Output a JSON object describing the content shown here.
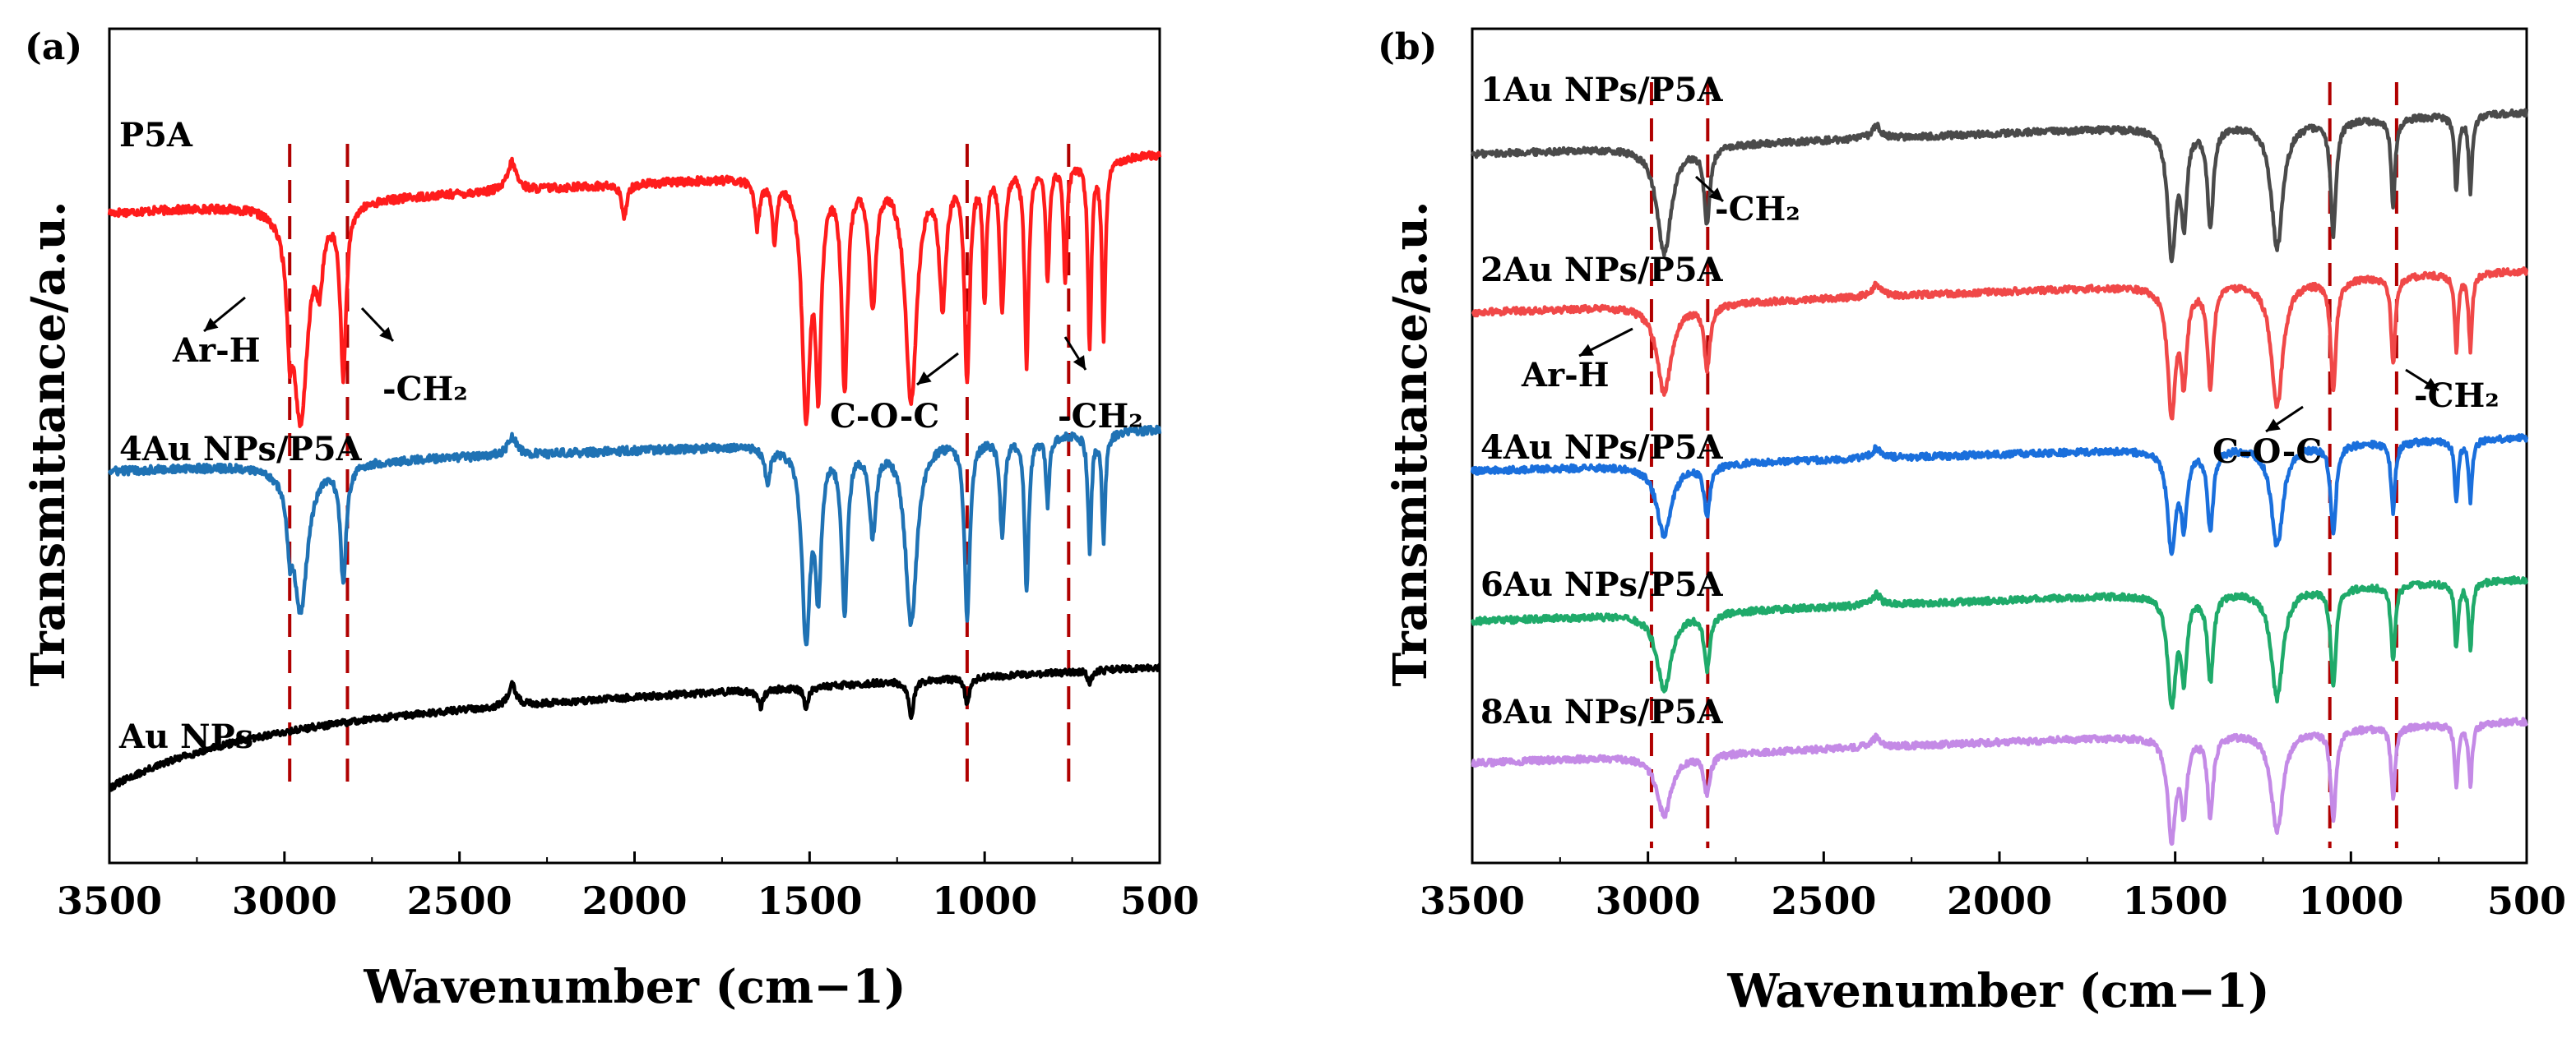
{
  "chart_data": [
    {
      "type": "line",
      "panel_label": "(a)",
      "xlabel": "Wavenumber (cm−1)",
      "ylabel": "Transmittance/a.u.",
      "xlim": [
        3500,
        500
      ],
      "x_ticks": [
        3500,
        3000,
        2500,
        2000,
        1500,
        1000,
        500
      ],
      "grid": false,
      "y_ticks_visible": false,
      "series": [
        {
          "name": "P5A",
          "color": "#ff1c1c",
          "baseline": 0.78,
          "amplitude": 0.28,
          "trend": 0.07,
          "noise": 0.005,
          "peaks": [
            [
              2954,
              0.92,
              25
            ],
            [
              2832,
              0.72,
              10
            ],
            [
              2985,
              0.35,
              9
            ],
            [
              2900,
              0.25,
              12
            ],
            [
              1510,
              1.0,
              14
            ],
            [
              1475,
              0.82,
              10
            ],
            [
              1400,
              0.9,
              10
            ],
            [
              1320,
              0.55,
              12
            ],
            [
              1210,
              0.98,
              20
            ],
            [
              1120,
              0.55,
              12
            ],
            [
              1050,
              0.9,
              9
            ],
            [
              1000,
              0.55,
              6
            ],
            [
              950,
              0.6,
              8
            ],
            [
              880,
              0.85,
              7
            ],
            [
              820,
              0.5,
              6
            ],
            [
              770,
              0.5,
              6
            ],
            [
              700,
              0.8,
              6
            ],
            [
              660,
              0.75,
              6
            ],
            [
              1600,
              0.25,
              8
            ],
            [
              1650,
              0.2,
              8
            ],
            [
              2030,
              0.15,
              8
            ],
            [
              2350,
              -0.12,
              15
            ]
          ]
        },
        {
          "name": "4Au NPs/P5A",
          "color": "#1f72b4",
          "baseline": 0.47,
          "amplitude": 0.23,
          "trend": 0.05,
          "noise": 0.005,
          "peaks": [
            [
              2954,
              0.75,
              25
            ],
            [
              2832,
              0.6,
              10
            ],
            [
              2985,
              0.25,
              9
            ],
            [
              1510,
              1.0,
              14
            ],
            [
              1475,
              0.7,
              10
            ],
            [
              1400,
              0.85,
              10
            ],
            [
              1320,
              0.45,
              12
            ],
            [
              1210,
              0.95,
              20
            ],
            [
              1050,
              0.95,
              9
            ],
            [
              950,
              0.5,
              8
            ],
            [
              880,
              0.8,
              7
            ],
            [
              820,
              0.35,
              6
            ],
            [
              700,
              0.6,
              6
            ],
            [
              660,
              0.55,
              6
            ],
            [
              1620,
              0.2,
              8
            ],
            [
              2350,
              -0.1,
              15
            ]
          ]
        },
        {
          "name": "Au NPs",
          "color": "#000000",
          "baseline": 0.165,
          "amplitude": 0.08,
          "trend": 0.07,
          "noise": 0.004,
          "curve_start": 0.24,
          "peaks": [
            [
              1210,
              0.6,
              8
            ],
            [
              1050,
              0.4,
              8
            ],
            [
              1510,
              0.3,
              8
            ],
            [
              1640,
              0.25,
              10
            ],
            [
              2350,
              -0.35,
              12
            ],
            [
              700,
              0.2,
              6
            ]
          ]
        }
      ],
      "annotations": [
        {
          "label": "Ar-H",
          "points_to": 3000
        },
        {
          "label": "-CH₂",
          "points_to": 2820
        },
        {
          "label": "C-O-C",
          "points_to": 1150
        },
        {
          "label": "-CH₂",
          "points_to": 745
        }
      ],
      "reference_lines": [
        2985,
        2820,
        1050,
        760
      ]
    },
    {
      "type": "line",
      "panel_label": "(b)",
      "xlabel": "Wavenumber (cm−1)",
      "ylabel": "Transmittance/a.u.",
      "xlim": [
        3500,
        500
      ],
      "x_ticks": [
        3500,
        3000,
        2500,
        2000,
        1500,
        1000,
        500
      ],
      "grid": false,
      "y_ticks_visible": false,
      "series": [
        {
          "name": "1Au NPs/P5A",
          "color": "#4a4a4a",
          "baseline": 0.85,
          "amplitude": 0.15,
          "trend": 0.05,
          "noise": 0.004,
          "peaks": [
            [
              2954,
              0.85,
              25
            ],
            [
              2832,
              0.6,
              10
            ],
            [
              1510,
              1.0,
              14
            ],
            [
              1475,
              0.7,
              10
            ],
            [
              1400,
              0.8,
              10
            ],
            [
              1210,
              1.0,
              20
            ],
            [
              1050,
              0.9,
              9
            ],
            [
              880,
              0.7,
              7
            ],
            [
              700,
              0.6,
              6
            ],
            [
              660,
              0.6,
              6
            ],
            [
              2350,
              -0.1,
              15
            ]
          ]
        },
        {
          "name": "2Au NPs/P5A",
          "color": "#f04848",
          "baseline": 0.66,
          "amplitude": 0.15,
          "trend": 0.05,
          "noise": 0.004,
          "peaks": [
            [
              2954,
              0.7,
              25
            ],
            [
              2832,
              0.5,
              10
            ],
            [
              1510,
              1.0,
              14
            ],
            [
              1475,
              0.7,
              10
            ],
            [
              1400,
              0.8,
              10
            ],
            [
              1210,
              1.0,
              20
            ],
            [
              1050,
              0.9,
              9
            ],
            [
              880,
              0.7,
              7
            ],
            [
              700,
              0.6,
              6
            ],
            [
              660,
              0.6,
              6
            ],
            [
              2350,
              -0.1,
              15
            ]
          ]
        },
        {
          "name": "4Au NPs/P5A",
          "color": "#1a6fdc",
          "baseline": 0.47,
          "amplitude": 0.12,
          "trend": 0.04,
          "noise": 0.004,
          "peaks": [
            [
              2954,
              0.7,
              25
            ],
            [
              2832,
              0.5,
              10
            ],
            [
              1510,
              1.0,
              14
            ],
            [
              1475,
              0.7,
              10
            ],
            [
              1400,
              0.8,
              10
            ],
            [
              1210,
              1.0,
              20
            ],
            [
              1050,
              0.9,
              9
            ],
            [
              880,
              0.7,
              7
            ],
            [
              700,
              0.6,
              6
            ],
            [
              660,
              0.6,
              6
            ],
            [
              2350,
              -0.1,
              15
            ]
          ]
        },
        {
          "name": "6Au NPs/P5A",
          "color": "#1faa6a",
          "baseline": 0.29,
          "amplitude": 0.13,
          "trend": 0.05,
          "noise": 0.004,
          "peaks": [
            [
              2954,
              0.7,
              25
            ],
            [
              2832,
              0.5,
              10
            ],
            [
              1510,
              1.0,
              14
            ],
            [
              1475,
              0.7,
              10
            ],
            [
              1400,
              0.8,
              10
            ],
            [
              1210,
              1.0,
              20
            ],
            [
              1050,
              0.9,
              9
            ],
            [
              880,
              0.7,
              7
            ],
            [
              700,
              0.6,
              6
            ],
            [
              660,
              0.6,
              6
            ],
            [
              2350,
              -0.1,
              15
            ]
          ]
        },
        {
          "name": "8Au NPs/P5A",
          "color": "#c48ae6",
          "baseline": 0.12,
          "amplitude": 0.12,
          "trend": 0.05,
          "noise": 0.004,
          "peaks": [
            [
              2954,
              0.6,
              25
            ],
            [
              2832,
              0.4,
              10
            ],
            [
              1510,
              1.0,
              14
            ],
            [
              1475,
              0.7,
              10
            ],
            [
              1400,
              0.8,
              10
            ],
            [
              1210,
              1.0,
              20
            ],
            [
              1050,
              0.9,
              9
            ],
            [
              880,
              0.7,
              7
            ],
            [
              700,
              0.6,
              6
            ],
            [
              660,
              0.6,
              6
            ],
            [
              2350,
              -0.1,
              15
            ]
          ]
        }
      ],
      "annotations": [
        {
          "label": "-CH₂",
          "points_to": 2830
        },
        {
          "label": "Ar-H",
          "points_to": 3000
        },
        {
          "label": "C-O-C",
          "points_to": 1050
        },
        {
          "label": "-CH₂",
          "points_to": 870
        }
      ],
      "reference_lines": [
        2990,
        2830,
        1060,
        870
      ]
    }
  ]
}
